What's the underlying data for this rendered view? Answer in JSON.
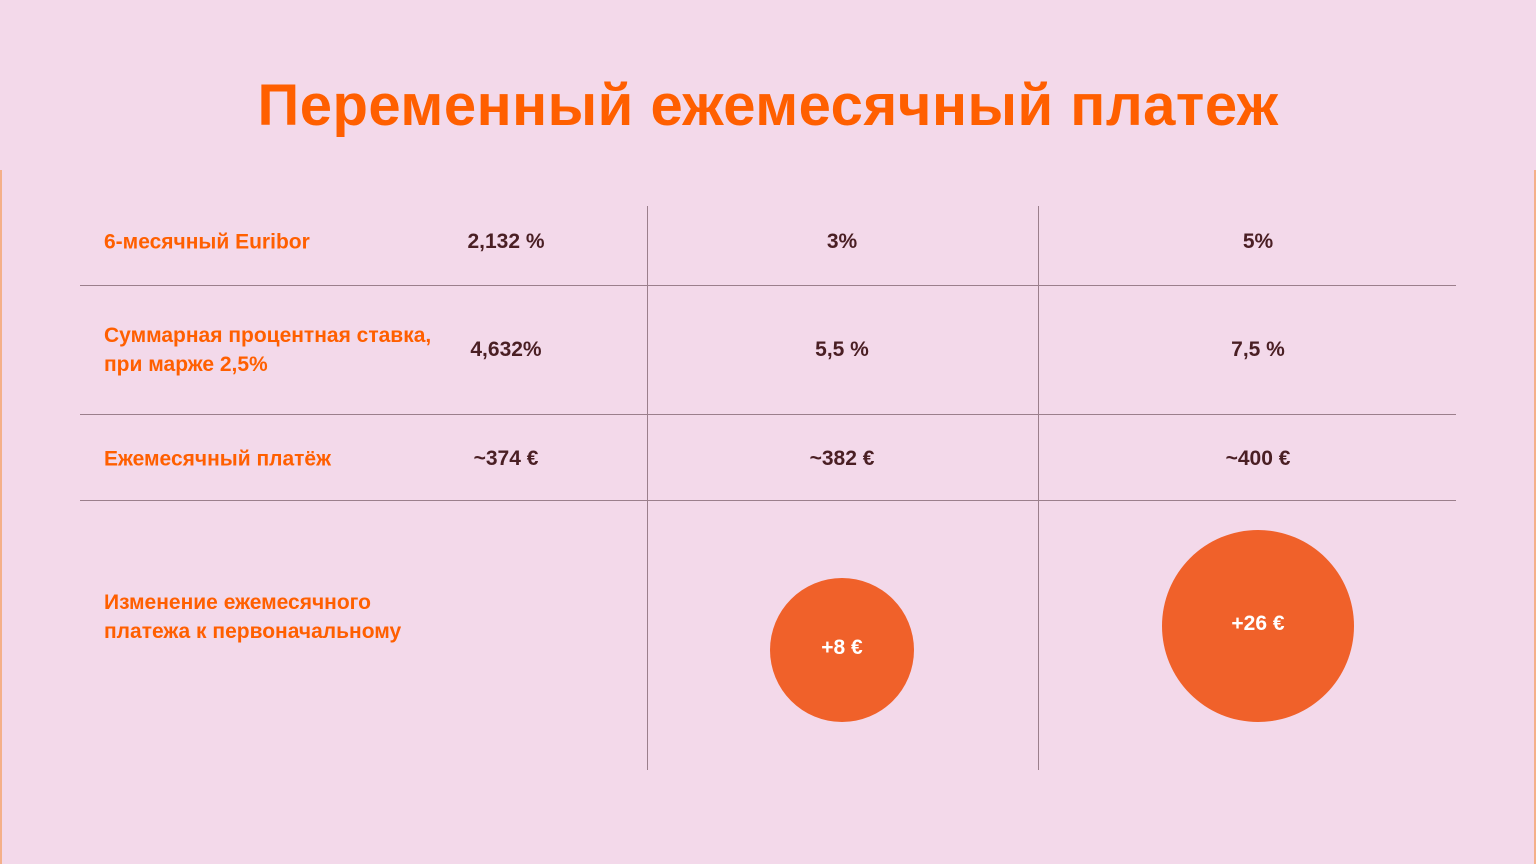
{
  "title": "Переменный ежемесячный платеж",
  "table": {
    "rows": [
      {
        "label": "6-месячный Euribor",
        "values": [
          "2,132 %",
          "3%",
          "5%"
        ]
      },
      {
        "label": "Суммарная процентная ставка, при марже 2,5%",
        "values": [
          "4,632%",
          "5,5 %",
          "7,5 %"
        ]
      },
      {
        "label": "Ежемесячный платёж",
        "values": [
          "~374 €",
          "~382 €",
          "~400 €"
        ]
      }
    ],
    "change_row": {
      "label": "Изменение ежемесячного платежа к первоначальному",
      "values": [
        "+8 €",
        "+26 €"
      ]
    }
  }
}
